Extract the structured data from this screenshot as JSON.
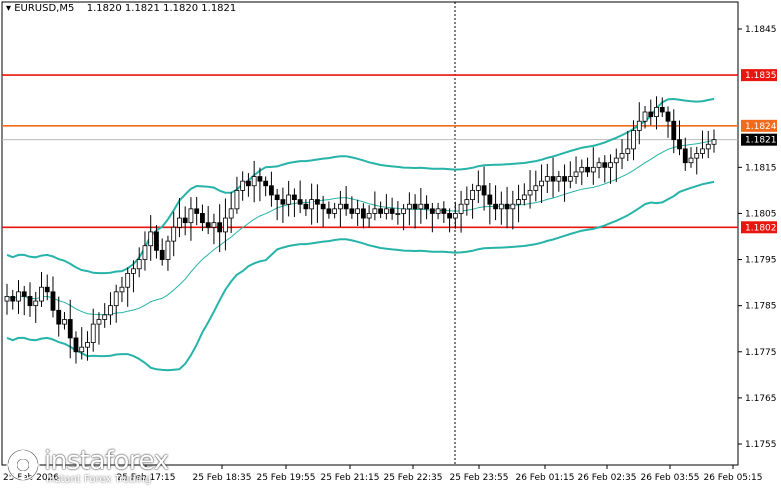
{
  "header": {
    "symbol": "EURUSD,M5",
    "open": "1.1820",
    "high": "1.1821",
    "low": "1.1820",
    "close": "1.1821"
  },
  "brand": {
    "name": "instaforex",
    "tagline": "Instant Forex Trading"
  },
  "colors": {
    "candle": "#000000",
    "bollinger": "#26b3a8",
    "level_red": "#e8160c",
    "level_orange": "#f26a1b",
    "price_tag": "#000000",
    "grid": "#c8c8c8"
  },
  "chart_data": {
    "type": "candlestick",
    "symbol": "EURUSD",
    "timeframe": "M5",
    "ylim": [
      1.175,
      1.185
    ],
    "y_ticks": [
      "1.1845",
      "1.1835",
      "1.1824",
      "1.1821",
      "1.1815",
      "1.1805",
      "1.1802",
      "1.1795",
      "1.1785",
      "1.1775",
      "1.1765",
      "1.1755"
    ],
    "x_ticks": [
      "25 Feb 2026",
      "25 Feb 17:15",
      "25 Feb 18:35",
      "25 Feb 19:55",
      "25 Feb 21:15",
      "25 Feb 22:35",
      "25 Feb 23:55",
      "26 Feb 01:15",
      "26 Feb 02:35",
      "26 Feb 03:55",
      "26 Feb 05:15"
    ],
    "levels": [
      {
        "price": 1.1835,
        "label": "1.1835",
        "color": "#e8160c"
      },
      {
        "price": 1.1824,
        "label": "1.1824",
        "color": "#f26a1b"
      },
      {
        "price": 1.1802,
        "label": "1.1802",
        "color": "#e8160c"
      }
    ],
    "current_price": {
      "price": 1.1821,
      "label": "1.1821"
    },
    "session_separator": "25 Feb 23:55",
    "closes": [
      1.1787,
      1.1786,
      1.1788,
      1.1787,
      1.1785,
      1.1786,
      1.1789,
      1.1788,
      1.1784,
      1.1781,
      1.1782,
      1.1778,
      1.1775,
      1.1776,
      1.1777,
      1.1781,
      1.1782,
      1.1783,
      1.1785,
      1.1788,
      1.1789,
      1.1792,
      1.1793,
      1.1795,
      1.1798,
      1.1801,
      1.1797,
      1.1795,
      1.1799,
      1.1802,
      1.1804,
      1.1803,
      1.1806,
      1.1805,
      1.1803,
      1.1802,
      1.1803,
      1.1801,
      1.1804,
      1.1806,
      1.181,
      1.1812,
      1.1811,
      1.1813,
      1.1812,
      1.1811,
      1.1809,
      1.1808,
      1.1807,
      1.1809,
      1.1808,
      1.1807,
      1.1806,
      1.1808,
      1.1807,
      1.1806,
      1.1805,
      1.1806,
      1.1807,
      1.1806,
      1.1805,
      1.1806,
      1.1804,
      1.1805,
      1.1806,
      1.1805,
      1.1806,
      1.1805,
      1.1805,
      1.1806,
      1.1807,
      1.1806,
      1.1807,
      1.1806,
      1.1805,
      1.1806,
      1.1805,
      1.1804,
      1.1805,
      1.1807,
      1.1808,
      1.181,
      1.1811,
      1.1809,
      1.1807,
      1.1806,
      1.1807,
      1.1806,
      1.1807,
      1.1808,
      1.1809,
      1.181,
      1.1811,
      1.1812,
      1.1813,
      1.1812,
      1.1813,
      1.1812,
      1.1813,
      1.1814,
      1.1815,
      1.1814,
      1.1815,
      1.1816,
      1.1815,
      1.1816,
      1.1817,
      1.1818,
      1.1819,
      1.1823,
      1.1825,
      1.1827,
      1.1826,
      1.1828,
      1.1827,
      1.1825,
      1.1821,
      1.1819,
      1.1816,
      1.1817,
      1.1818,
      1.1819,
      1.182,
      1.1821
    ],
    "bollinger": {
      "period": 20,
      "deviations": 2
    }
  }
}
